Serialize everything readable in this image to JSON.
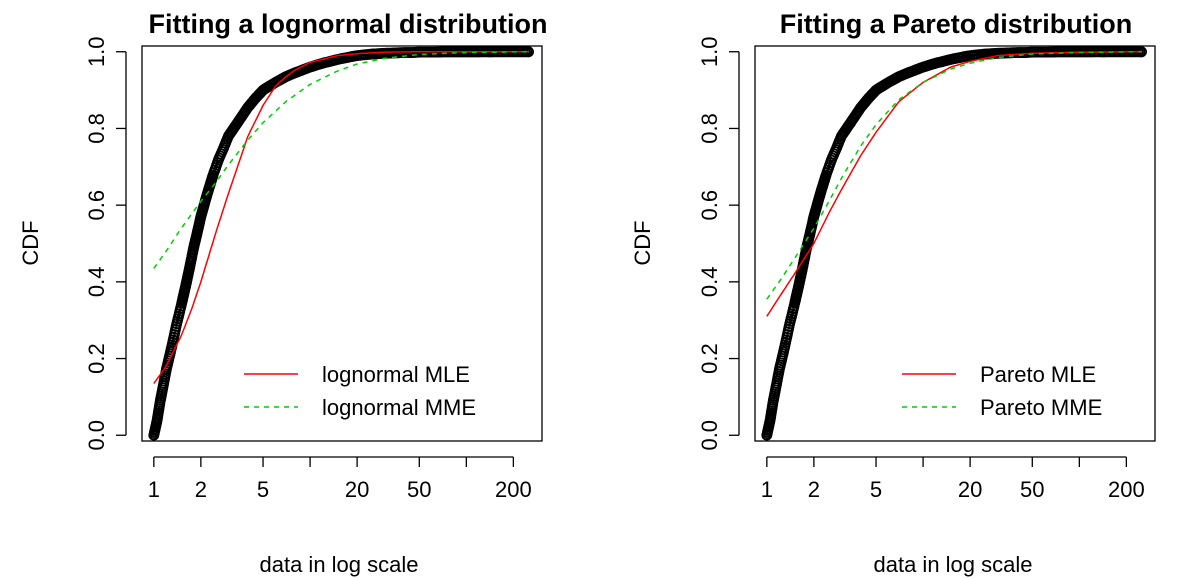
{
  "chart_data": [
    {
      "type": "line",
      "title": "Fitting a lognormal distribution",
      "xlabel": "data in log scale",
      "ylabel": "CDF",
      "x_scale": "log",
      "xlim": [
        0.84,
        305
      ],
      "ylim": [
        -0.015,
        1.015
      ],
      "x_ticks": [
        1,
        2,
        5,
        10,
        20,
        50,
        100,
        200
      ],
      "x_tick_labels": [
        "1",
        "2",
        "5",
        "",
        "20",
        "50",
        "",
        "200"
      ],
      "y_ticks": [
        0.0,
        0.2,
        0.4,
        0.6,
        0.8,
        1.0
      ],
      "y_tick_labels": [
        "0.0",
        "0.2",
        "0.4",
        "0.6",
        "0.8",
        "1.0"
      ],
      "grid": false,
      "legend_position": "bottom-right",
      "colors": {
        "empirical": "#000000",
        "mle": "#ff0000",
        "mme": "#00cd00"
      },
      "series": [
        {
          "role": "empirical",
          "style": "points",
          "values": [
            [
              1.0,
              0.0
            ],
            [
              1.05,
              0.04
            ],
            [
              1.1,
              0.09
            ],
            [
              1.15,
              0.13
            ],
            [
              1.2,
              0.17
            ],
            [
              1.3,
              0.23
            ],
            [
              1.4,
              0.29
            ],
            [
              1.5,
              0.34
            ],
            [
              1.6,
              0.39
            ],
            [
              1.7,
              0.44
            ],
            [
              1.8,
              0.49
            ],
            [
              1.9,
              0.53
            ],
            [
              2.0,
              0.57
            ],
            [
              2.2,
              0.63
            ],
            [
              2.4,
              0.68
            ],
            [
              2.6,
              0.72
            ],
            [
              2.8,
              0.75
            ],
            [
              3.0,
              0.78
            ],
            [
              3.5,
              0.82
            ],
            [
              4.0,
              0.855
            ],
            [
              4.5,
              0.88
            ],
            [
              5.0,
              0.9
            ],
            [
              6.0,
              0.92
            ],
            [
              7.0,
              0.935
            ],
            [
              8.0,
              0.945
            ],
            [
              10.0,
              0.96
            ],
            [
              12.0,
              0.97
            ],
            [
              15.0,
              0.98
            ],
            [
              20.0,
              0.99
            ],
            [
              25.0,
              0.994
            ],
            [
              30.0,
              0.996
            ],
            [
              35.0,
              0.997
            ],
            [
              40.0,
              0.998
            ],
            [
              45.0,
              0.998
            ],
            [
              50.0,
              0.999
            ],
            [
              55.0,
              0.999
            ],
            [
              60.0,
              0.999
            ],
            [
              70.0,
              0.9995
            ],
            [
              140.0,
              0.9998
            ],
            [
              145.0,
              0.9999
            ],
            [
              250.0,
              1.0
            ]
          ]
        },
        {
          "role": "mle",
          "name": "lognormal MLE",
          "style": "solid",
          "values": [
            [
              1.0,
              0.135
            ],
            [
              1.2,
              0.18
            ],
            [
              1.5,
              0.26
            ],
            [
              1.75,
              0.33
            ],
            [
              2.0,
              0.4
            ],
            [
              2.5,
              0.53
            ],
            [
              3.0,
              0.63
            ],
            [
              3.5,
              0.71
            ],
            [
              4.0,
              0.78
            ],
            [
              5.0,
              0.86
            ],
            [
              6.0,
              0.91
            ],
            [
              7.0,
              0.935
            ],
            [
              8.0,
              0.952
            ],
            [
              10.0,
              0.972
            ],
            [
              15.0,
              0.99
            ],
            [
              20.0,
              0.995
            ],
            [
              30.0,
              0.999
            ],
            [
              50.0,
              1.0
            ],
            [
              250.0,
              1.0
            ]
          ]
        },
        {
          "role": "mme",
          "name": "lognormal MME",
          "style": "dashed",
          "values": [
            [
              1.0,
              0.435
            ],
            [
              1.2,
              0.48
            ],
            [
              1.5,
              0.54
            ],
            [
              2.0,
              0.61
            ],
            [
              2.5,
              0.66
            ],
            [
              3.0,
              0.705
            ],
            [
              4.0,
              0.77
            ],
            [
              5.0,
              0.815
            ],
            [
              7.0,
              0.87
            ],
            [
              10.0,
              0.915
            ],
            [
              15.0,
              0.95
            ],
            [
              20.0,
              0.968
            ],
            [
              30.0,
              0.983
            ],
            [
              50.0,
              0.993
            ],
            [
              100.0,
              0.998
            ],
            [
              250.0,
              1.0
            ]
          ]
        }
      ]
    },
    {
      "type": "line",
      "title": "Fitting a Pareto distribution",
      "xlabel": "data in log scale",
      "ylabel": "CDF",
      "x_scale": "log",
      "xlim": [
        0.84,
        305
      ],
      "ylim": [
        -0.015,
        1.015
      ],
      "x_ticks": [
        1,
        2,
        5,
        10,
        20,
        50,
        100,
        200
      ],
      "x_tick_labels": [
        "1",
        "2",
        "5",
        "",
        "20",
        "50",
        "",
        "200"
      ],
      "y_ticks": [
        0.0,
        0.2,
        0.4,
        0.6,
        0.8,
        1.0
      ],
      "y_tick_labels": [
        "0.0",
        "0.2",
        "0.4",
        "0.6",
        "0.8",
        "1.0"
      ],
      "grid": false,
      "legend_position": "bottom-right",
      "colors": {
        "empirical": "#000000",
        "mle": "#ff0000",
        "mme": "#00cd00"
      },
      "series": [
        {
          "role": "empirical",
          "style": "points",
          "values": [
            [
              1.0,
              0.0
            ],
            [
              1.05,
              0.04
            ],
            [
              1.1,
              0.09
            ],
            [
              1.15,
              0.13
            ],
            [
              1.2,
              0.17
            ],
            [
              1.3,
              0.23
            ],
            [
              1.4,
              0.29
            ],
            [
              1.5,
              0.34
            ],
            [
              1.6,
              0.39
            ],
            [
              1.7,
              0.44
            ],
            [
              1.8,
              0.49
            ],
            [
              1.9,
              0.53
            ],
            [
              2.0,
              0.57
            ],
            [
              2.2,
              0.63
            ],
            [
              2.4,
              0.68
            ],
            [
              2.6,
              0.72
            ],
            [
              2.8,
              0.75
            ],
            [
              3.0,
              0.78
            ],
            [
              3.5,
              0.82
            ],
            [
              4.0,
              0.855
            ],
            [
              4.5,
              0.88
            ],
            [
              5.0,
              0.9
            ],
            [
              6.0,
              0.92
            ],
            [
              7.0,
              0.935
            ],
            [
              8.0,
              0.945
            ],
            [
              10.0,
              0.96
            ],
            [
              12.0,
              0.97
            ],
            [
              15.0,
              0.98
            ],
            [
              20.0,
              0.99
            ],
            [
              25.0,
              0.994
            ],
            [
              30.0,
              0.996
            ],
            [
              35.0,
              0.997
            ],
            [
              40.0,
              0.998
            ],
            [
              45.0,
              0.998
            ],
            [
              50.0,
              0.999
            ],
            [
              55.0,
              0.999
            ],
            [
              60.0,
              0.999
            ],
            [
              70.0,
              0.9995
            ],
            [
              140.0,
              0.9998
            ],
            [
              145.0,
              0.9999
            ],
            [
              250.0,
              1.0
            ]
          ]
        },
        {
          "role": "mle",
          "name": "Pareto MLE",
          "style": "solid",
          "values": [
            [
              1.0,
              0.31
            ],
            [
              1.2,
              0.36
            ],
            [
              1.5,
              0.42
            ],
            [
              2.0,
              0.5
            ],
            [
              2.5,
              0.58
            ],
            [
              3.0,
              0.64
            ],
            [
              4.0,
              0.73
            ],
            [
              5.0,
              0.79
            ],
            [
              7.0,
              0.87
            ],
            [
              10.0,
              0.92
            ],
            [
              15.0,
              0.96
            ],
            [
              20.0,
              0.975
            ],
            [
              30.0,
              0.99
            ],
            [
              50.0,
              0.996
            ],
            [
              100.0,
              0.999
            ],
            [
              250.0,
              1.0
            ]
          ]
        },
        {
          "role": "mme",
          "name": "Pareto MME",
          "style": "dashed",
          "values": [
            [
              1.0,
              0.355
            ],
            [
              1.2,
              0.4
            ],
            [
              1.5,
              0.46
            ],
            [
              2.0,
              0.54
            ],
            [
              2.5,
              0.61
            ],
            [
              3.0,
              0.67
            ],
            [
              4.0,
              0.755
            ],
            [
              5.0,
              0.81
            ],
            [
              7.0,
              0.875
            ],
            [
              10.0,
              0.92
            ],
            [
              15.0,
              0.955
            ],
            [
              20.0,
              0.97
            ],
            [
              30.0,
              0.985
            ],
            [
              50.0,
              0.994
            ],
            [
              100.0,
              0.998
            ],
            [
              250.0,
              1.0
            ]
          ]
        }
      ]
    }
  ]
}
